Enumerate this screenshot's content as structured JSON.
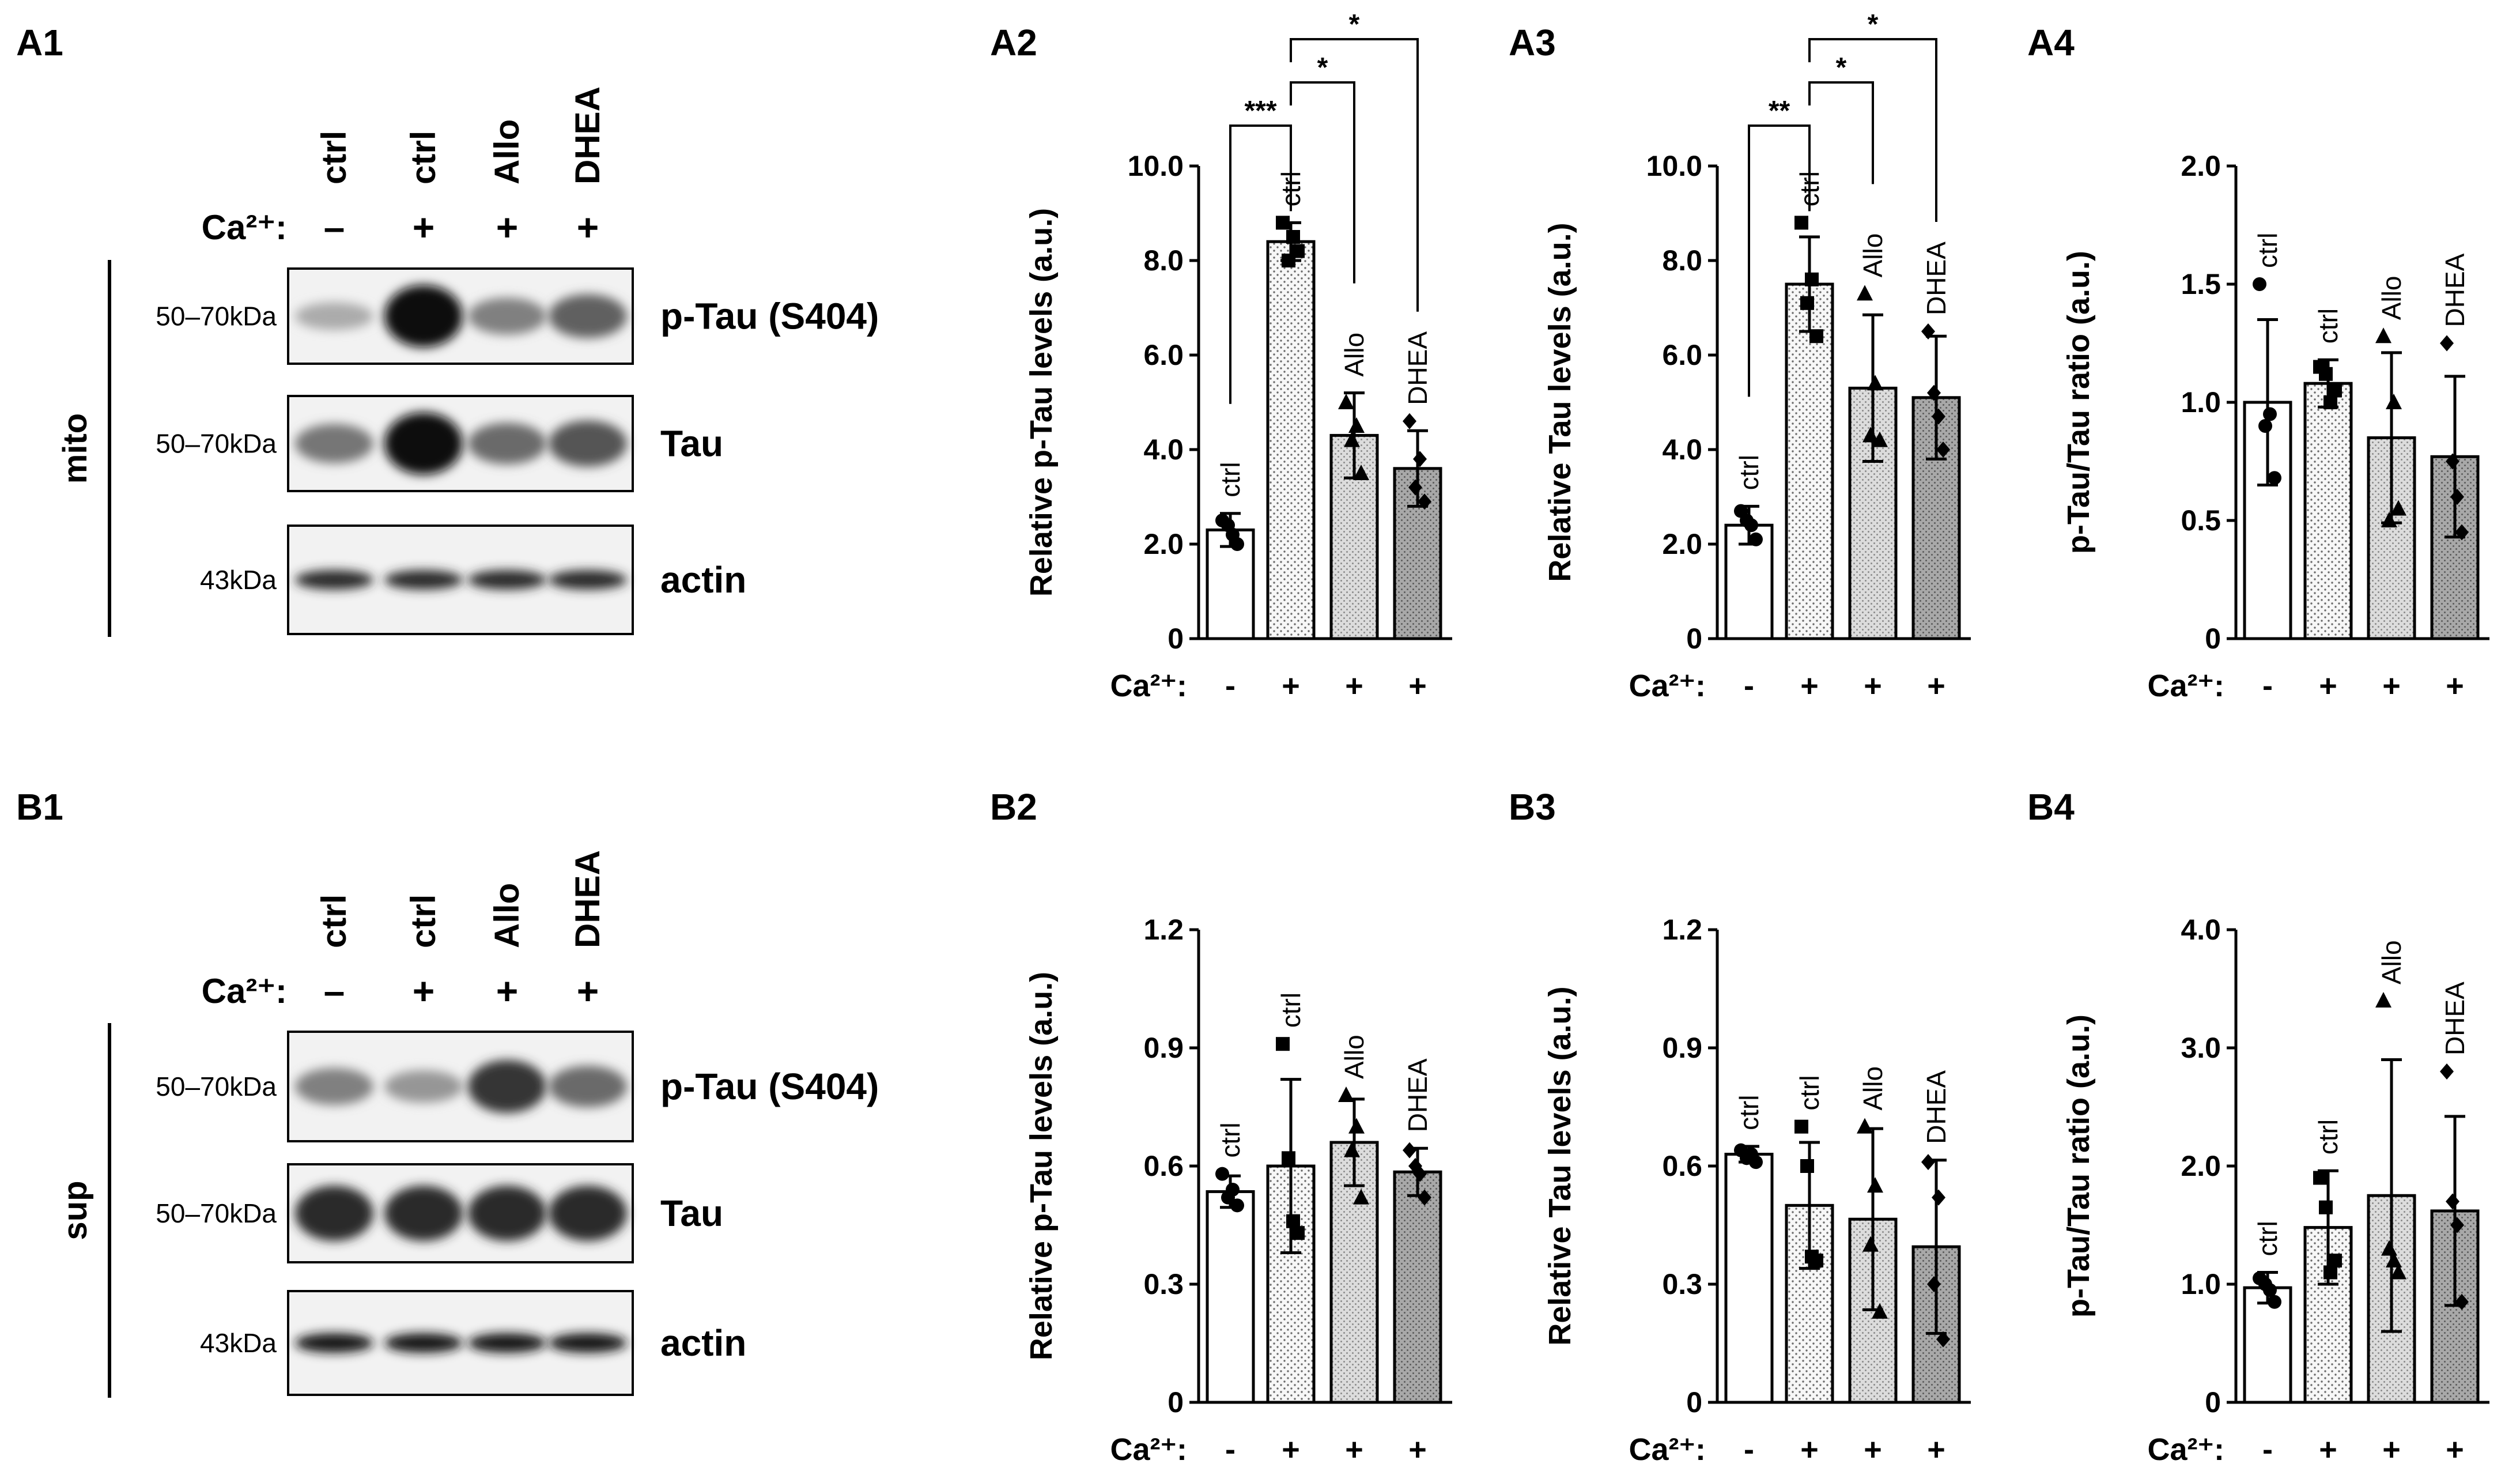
{
  "panels": {
    "a1": "A1",
    "a2": "A2",
    "a3": "A3",
    "a4": "A4",
    "b1": "B1",
    "b2": "B2",
    "b3": "B3",
    "b4": "B4"
  },
  "colors": {
    "ctrl_minus": "#ffffff",
    "ctrl_plus": "#f7f7f7",
    "allo": "#dcdcdc",
    "dhea": "#a8a8a8"
  },
  "blots": [
    {
      "panel": "A1",
      "fraction": "mito",
      "lanes": [
        "ctrl",
        "ctrl",
        "Allo",
        "DHEA"
      ],
      "ca_label": "Ca²⁺:",
      "ca": [
        "–",
        "+",
        "+",
        "+"
      ],
      "rows": [
        {
          "size": "50–70kDa",
          "name": "p-Tau (S404)",
          "intensity": [
            0.25,
            1.0,
            0.45,
            0.6
          ]
        },
        {
          "size": "50–70kDa",
          "name": "Tau",
          "intensity": [
            0.5,
            1.0,
            0.55,
            0.65
          ]
        },
        {
          "size": "43kDa",
          "name": "actin",
          "intensity": [
            0.85,
            0.85,
            0.85,
            0.85
          ]
        }
      ]
    },
    {
      "panel": "B1",
      "fraction": "sup",
      "lanes": [
        "ctrl",
        "ctrl",
        "Allo",
        "DHEA"
      ],
      "ca_label": "Ca²⁺:",
      "ca": [
        "–",
        "+",
        "+",
        "+"
      ],
      "rows": [
        {
          "size": "50–70kDa",
          "name": "p-Tau (S404)",
          "intensity": [
            0.45,
            0.35,
            0.8,
            0.55
          ]
        },
        {
          "size": "50–70kDa",
          "name": "Tau",
          "intensity": [
            0.85,
            0.85,
            0.85,
            0.85
          ]
        },
        {
          "size": "43kDa",
          "name": "actin",
          "intensity": [
            0.95,
            0.95,
            0.95,
            0.95
          ]
        }
      ]
    }
  ],
  "chart_data": [
    {
      "panel": "A2",
      "type": "bar",
      "ylabel": "Relative p-Tau levels (a.u.)",
      "ylim": [
        0,
        10
      ],
      "yticks": [
        "0",
        "2.0",
        "4.0",
        "6.0",
        "8.0",
        "10.0"
      ],
      "ytick_values": [
        0,
        2,
        4,
        6,
        8,
        10
      ],
      "categories": [
        "ctrl",
        "ctrl",
        "Allo",
        "DHEA"
      ],
      "ca_label": "Ca²⁺:",
      "ca": [
        "-",
        "+",
        "+",
        "+"
      ],
      "values": [
        2.3,
        8.4,
        4.3,
        3.6
      ],
      "sd": [
        0.35,
        0.4,
        0.9,
        0.8
      ],
      "points": [
        [
          2.5,
          2.2,
          2.0,
          2.4
        ],
        [
          8.8,
          8.5,
          8.2,
          8.0
        ],
        [
          5.0,
          4.5,
          3.5,
          4.2
        ],
        [
          4.6,
          3.8,
          2.9,
          3.2
        ]
      ],
      "markers": [
        "circle",
        "square",
        "triangle",
        "diamond"
      ],
      "sig": [
        {
          "from": 0,
          "to": 1,
          "label": "***"
        },
        {
          "from": 1,
          "to": 2,
          "label": "*"
        },
        {
          "from": 1,
          "to": 3,
          "label": "*"
        }
      ]
    },
    {
      "panel": "A3",
      "type": "bar",
      "ylabel": "Relative Tau levels (a.u.)",
      "ylim": [
        0,
        10
      ],
      "yticks": [
        "0",
        "2.0",
        "4.0",
        "6.0",
        "8.0",
        "10.0"
      ],
      "ytick_values": [
        0,
        2,
        4,
        6,
        8,
        10
      ],
      "categories": [
        "ctrl",
        "ctrl",
        "Allo",
        "DHEA"
      ],
      "ca_label": "Ca²⁺:",
      "ca": [
        "-",
        "+",
        "+",
        "+"
      ],
      "values": [
        2.4,
        7.5,
        5.3,
        5.1
      ],
      "sd": [
        0.4,
        1.0,
        1.55,
        1.3
      ],
      "points": [
        [
          2.7,
          2.4,
          2.1,
          2.5
        ],
        [
          8.8,
          7.6,
          6.4,
          7.1
        ],
        [
          7.3,
          5.4,
          4.2,
          4.3
        ],
        [
          6.5,
          4.7,
          4.0,
          5.2
        ]
      ],
      "markers": [
        "circle",
        "square",
        "triangle",
        "diamond"
      ],
      "sig": [
        {
          "from": 0,
          "to": 1,
          "label": "**"
        },
        {
          "from": 1,
          "to": 2,
          "label": "*"
        },
        {
          "from": 1,
          "to": 3,
          "label": "*"
        }
      ]
    },
    {
      "panel": "A4",
      "type": "bar",
      "ylabel": "p-Tau/Tau ratio (a.u.)",
      "ylim": [
        0,
        2
      ],
      "yticks": [
        "0",
        "0.5",
        "1.0",
        "1.5",
        "2.0"
      ],
      "ytick_values": [
        0,
        0.5,
        1,
        1.5,
        2
      ],
      "categories": [
        "ctrl",
        "ctrl",
        "Allo",
        "DHEA"
      ],
      "ca_label": "Ca²⁺:",
      "ca": [
        "-",
        "+",
        "+",
        "+"
      ],
      "values": [
        1.0,
        1.08,
        0.85,
        0.77
      ],
      "sd": [
        0.35,
        0.1,
        0.36,
        0.34
      ],
      "points": [
        [
          1.5,
          0.95,
          0.68,
          0.9
        ],
        [
          1.15,
          1.0,
          1.05,
          1.12
        ],
        [
          1.28,
          1.0,
          0.55,
          0.5
        ],
        [
          1.25,
          0.6,
          0.45,
          0.75
        ]
      ],
      "markers": [
        "circle",
        "square",
        "triangle",
        "diamond"
      ],
      "sig": []
    },
    {
      "panel": "B2",
      "type": "bar",
      "ylabel": "Relative p-Tau levels (a.u.)",
      "ylim": [
        0,
        1.2
      ],
      "yticks": [
        "0",
        "0.3",
        "0.6",
        "0.9",
        "1.2"
      ],
      "ytick_values": [
        0,
        0.3,
        0.6,
        0.9,
        1.2
      ],
      "categories": [
        "ctrl",
        "ctrl",
        "Allo",
        "DHEA"
      ],
      "ca_label": "Ca²⁺:",
      "ca": [
        "-",
        "+",
        "+",
        "+"
      ],
      "values": [
        0.535,
        0.6,
        0.66,
        0.585
      ],
      "sd": [
        0.04,
        0.22,
        0.11,
        0.06
      ],
      "points": [
        [
          0.58,
          0.54,
          0.5,
          0.52
        ],
        [
          0.91,
          0.46,
          0.43,
          0.62
        ],
        [
          0.78,
          0.7,
          0.52,
          0.64
        ],
        [
          0.64,
          0.58,
          0.52,
          0.6
        ]
      ],
      "markers": [
        "circle",
        "square",
        "triangle",
        "diamond"
      ],
      "sig": []
    },
    {
      "panel": "B3",
      "type": "bar",
      "ylabel": "Relative Tau levels (a.u.)",
      "ylim": [
        0,
        1.2
      ],
      "yticks": [
        "0",
        "0.3",
        "0.6",
        "0.9",
        "1.2"
      ],
      "ytick_values": [
        0,
        0.3,
        0.6,
        0.9,
        1.2
      ],
      "categories": [
        "ctrl",
        "ctrl",
        "Allo",
        "DHEA"
      ],
      "ca_label": "Ca²⁺:",
      "ca": [
        "-",
        "+",
        "+",
        "+"
      ],
      "values": [
        0.63,
        0.5,
        0.465,
        0.395
      ],
      "sd": [
        0.02,
        0.16,
        0.23,
        0.22
      ],
      "points": [
        [
          0.64,
          0.63,
          0.61,
          0.62
        ],
        [
          0.7,
          0.37,
          0.36,
          0.6
        ],
        [
          0.7,
          0.55,
          0.23,
          0.4
        ],
        [
          0.61,
          0.52,
          0.16,
          0.3
        ]
      ],
      "markers": [
        "circle",
        "square",
        "triangle",
        "diamond"
      ],
      "sig": []
    },
    {
      "panel": "B4",
      "type": "bar",
      "ylabel": "p-Tau/Tau ratio (a.u.)",
      "ylim": [
        0,
        4
      ],
      "yticks": [
        "0",
        "1.0",
        "2.0",
        "3.0",
        "4.0"
      ],
      "ytick_values": [
        0,
        1,
        2,
        3,
        4
      ],
      "categories": [
        "ctrl",
        "ctrl",
        "Allo",
        "DHEA"
      ],
      "ca_label": "Ca²⁺:",
      "ca": [
        "-",
        "+",
        "+",
        "+"
      ],
      "values": [
        0.97,
        1.48,
        1.75,
        1.62
      ],
      "sd": [
        0.13,
        0.48,
        1.15,
        0.8
      ],
      "points": [
        [
          1.05,
          0.95,
          0.85,
          1.0
        ],
        [
          1.9,
          1.1,
          1.2,
          1.65
        ],
        [
          3.4,
          1.2,
          1.1,
          1.3
        ],
        [
          2.8,
          1.5,
          0.85,
          1.7
        ]
      ],
      "markers": [
        "circle",
        "square",
        "triangle",
        "diamond"
      ],
      "sig": []
    }
  ]
}
